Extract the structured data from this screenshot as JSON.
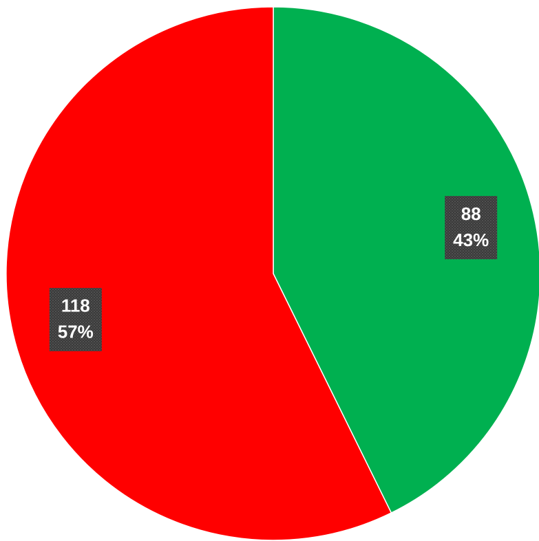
{
  "chart_data": {
    "type": "pie",
    "values": [
      88,
      118
    ],
    "percent_labels": [
      "43%",
      "57%"
    ],
    "colors": [
      "#00b050",
      "#ff0000"
    ]
  }
}
